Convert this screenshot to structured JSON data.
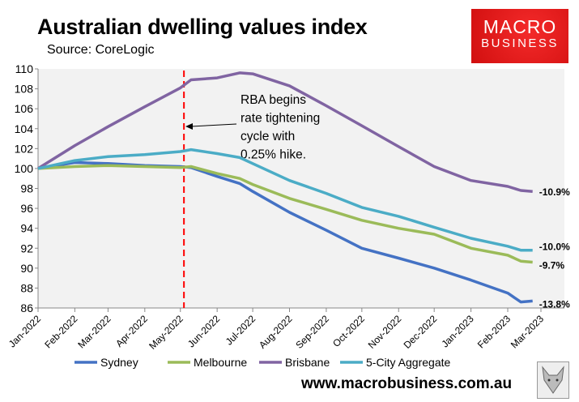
{
  "header": {
    "title": "Australian dwelling values index",
    "subtitle": "Source: CoreLogic"
  },
  "logo": {
    "line1": "MACRO",
    "line2": "BUSINESS",
    "color": "#e31b1b"
  },
  "footer": {
    "url": "www.macrobusiness.com.au",
    "icon": "fox-logo-icon"
  },
  "chart_data": {
    "type": "line",
    "title": "Australian dwelling values index",
    "ylim": [
      86,
      110
    ],
    "yticks": [
      86,
      88,
      90,
      92,
      94,
      96,
      98,
      100,
      102,
      104,
      106,
      108,
      110
    ],
    "xticks": [
      "Jan-2022",
      "Feb-2022",
      "Mar-2022",
      "Apr-2022",
      "May-2022",
      "Jun-2022",
      "Jul-2022",
      "Aug-2022",
      "Sep-2022",
      "Oct-2022",
      "Nov-2022",
      "Dec-2022",
      "Jan-2023",
      "Feb-2023",
      "Mar-2023"
    ],
    "xlim": [
      "2022-01-01",
      "2023-03-31"
    ],
    "grid": false,
    "legend": "bottom",
    "x": [
      "2022-01-01",
      "2022-02-01",
      "2022-03-01",
      "2022-04-01",
      "2022-05-01",
      "2022-05-10",
      "2022-06-01",
      "2022-06-20",
      "2022-07-01",
      "2022-08-01",
      "2022-09-01",
      "2022-10-01",
      "2022-11-01",
      "2022-12-01",
      "2023-01-01",
      "2023-02-01",
      "2023-02-12",
      "2023-02-22"
    ],
    "series": [
      {
        "name": "Sydney",
        "color": "#4472c4",
        "end_label": "-13.8%",
        "values": [
          100,
          100.6,
          100.5,
          100.3,
          100.2,
          100.1,
          99.2,
          98.5,
          97.7,
          95.6,
          93.8,
          92.0,
          91.0,
          90.0,
          88.8,
          87.5,
          86.6,
          86.7
        ]
      },
      {
        "name": "Melbourne",
        "color": "#9bbb59",
        "end_label": "-9.7%",
        "values": [
          100,
          100.2,
          100.3,
          100.2,
          100.1,
          100.2,
          99.5,
          99.0,
          98.4,
          97.0,
          95.9,
          94.8,
          94.0,
          93.4,
          92.0,
          91.3,
          90.7,
          90.6
        ]
      },
      {
        "name": "Brisbane",
        "color": "#8064a2",
        "end_label": "-10.9%",
        "values": [
          100,
          102.3,
          104.2,
          106.2,
          108.1,
          108.9,
          109.1,
          109.6,
          109.5,
          108.3,
          106.3,
          104.3,
          102.2,
          100.2,
          98.8,
          98.2,
          97.8,
          97.7
        ]
      },
      {
        "name": "5-City Aggregate",
        "color": "#4bacc6",
        "end_label": "-10.0%",
        "values": [
          100,
          100.8,
          101.2,
          101.4,
          101.7,
          101.9,
          101.5,
          101.1,
          100.5,
          98.8,
          97.5,
          96.1,
          95.2,
          94.1,
          93.0,
          92.2,
          91.8,
          91.8
        ]
      }
    ],
    "annotation": {
      "text_lines": [
        "RBA begins",
        "rate tightening",
        "cycle with",
        "0.25% hike."
      ],
      "date": "2022-05-04",
      "line_color": "#ff0000"
    }
  }
}
